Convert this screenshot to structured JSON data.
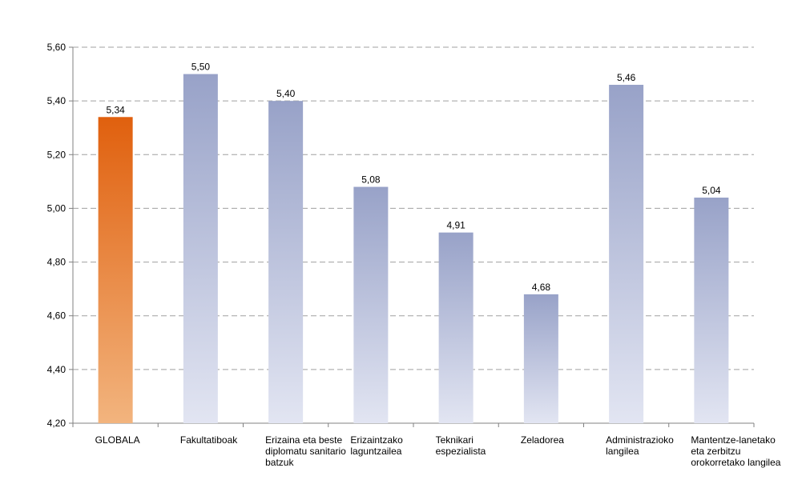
{
  "chart_data": {
    "type": "bar",
    "categories": [
      "GLOBALA",
      "Fakultatiboak",
      "Erizaina eta beste diplomatu sanitario batzuk",
      "Erizaintzako laguntzailea",
      "Teknikari espezialista",
      "Zeladorea",
      "Administrazioko langilea",
      "Mantentze-lanetako eta zerbitzu orokorretako langilea"
    ],
    "category_lines": [
      [
        "GLOBALA"
      ],
      [
        "Fakultatiboak"
      ],
      [
        "Erizaina eta beste",
        "diplomatu sanitario",
        "batzuk"
      ],
      [
        "Erizaintzako",
        "laguntzailea"
      ],
      [
        "Teknikari",
        "espezialista"
      ],
      [
        "Zeladorea"
      ],
      [
        "Administrazioko",
        "langilea"
      ],
      [
        "Mantentze-lanetako",
        "eta zerbitzu",
        "orokorretako langilea"
      ]
    ],
    "values": [
      5.34,
      5.5,
      5.4,
      5.08,
      4.91,
      4.68,
      5.46,
      5.04
    ],
    "value_labels": [
      "5,34",
      "5,50",
      "5,40",
      "5,08",
      "4,91",
      "4,68",
      "5,46",
      "5,04"
    ],
    "highlight_index": 0,
    "ylim": [
      4.2,
      5.6
    ],
    "yticks": [
      4.2,
      4.4,
      4.6,
      4.8,
      5.0,
      5.2,
      5.4,
      5.6
    ],
    "ytick_labels": [
      "4,20",
      "4,40",
      "4,60",
      "4,80",
      "5,00",
      "5,20",
      "5,40",
      "5,60"
    ],
    "grid": true,
    "colors": {
      "highlight_top": "#e0600e",
      "highlight_bottom": "#f2b47e",
      "bar_top": "#98a2c8",
      "bar_bottom": "#e2e5f2",
      "grid": "#a0a0a0",
      "axis": "#808080"
    }
  }
}
